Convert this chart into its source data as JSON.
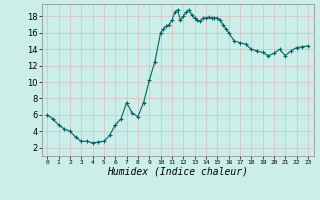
{
  "title": "",
  "xlabel": "Humidex (Indice chaleur)",
  "ylabel": "",
  "background_color": "#cceee8",
  "plot_bg_color": "#cceee8",
  "grid_color": "#aacccc",
  "line_color": "#006666",
  "marker_color": "#006666",
  "xlim": [
    -0.5,
    23.5
  ],
  "ylim": [
    1.0,
    19.5
  ],
  "yticks": [
    2,
    4,
    6,
    8,
    10,
    12,
    14,
    16,
    18
  ],
  "xticks": [
    0,
    1,
    2,
    3,
    4,
    5,
    6,
    7,
    8,
    9,
    10,
    11,
    12,
    13,
    14,
    15,
    16,
    17,
    18,
    19,
    20,
    21,
    22,
    23
  ],
  "x": [
    0,
    0.5,
    1,
    1.5,
    2,
    2.5,
    3,
    3.5,
    4,
    4.5,
    5,
    5.5,
    6,
    6.5,
    7,
    7.5,
    8,
    8.5,
    9,
    9.5,
    10,
    10.25,
    10.5,
    10.75,
    11,
    11.25,
    11.5,
    11.75,
    12,
    12.25,
    12.5,
    12.75,
    13,
    13.25,
    13.5,
    13.75,
    14,
    14.25,
    14.5,
    14.75,
    15,
    15.25,
    15.5,
    15.75,
    16,
    16.5,
    17,
    17.5,
    18,
    18.5,
    19,
    19.5,
    20,
    20.5,
    21,
    21.5,
    22,
    22.5,
    23
  ],
  "y": [
    6.0,
    5.5,
    4.8,
    4.3,
    4.0,
    3.3,
    2.8,
    2.8,
    2.6,
    2.7,
    2.8,
    3.5,
    4.8,
    5.5,
    7.5,
    6.2,
    5.8,
    7.5,
    10.2,
    12.5,
    16.0,
    16.5,
    16.8,
    17.0,
    17.5,
    18.5,
    18.8,
    17.5,
    18.0,
    18.5,
    18.8,
    18.2,
    17.8,
    17.5,
    17.4,
    17.8,
    17.8,
    17.9,
    17.8,
    17.8,
    17.8,
    17.5,
    17.0,
    16.5,
    16.0,
    15.0,
    14.8,
    14.6,
    14.0,
    13.8,
    13.6,
    13.2,
    13.5,
    14.0,
    13.2,
    13.8,
    14.2,
    14.3,
    14.4
  ]
}
